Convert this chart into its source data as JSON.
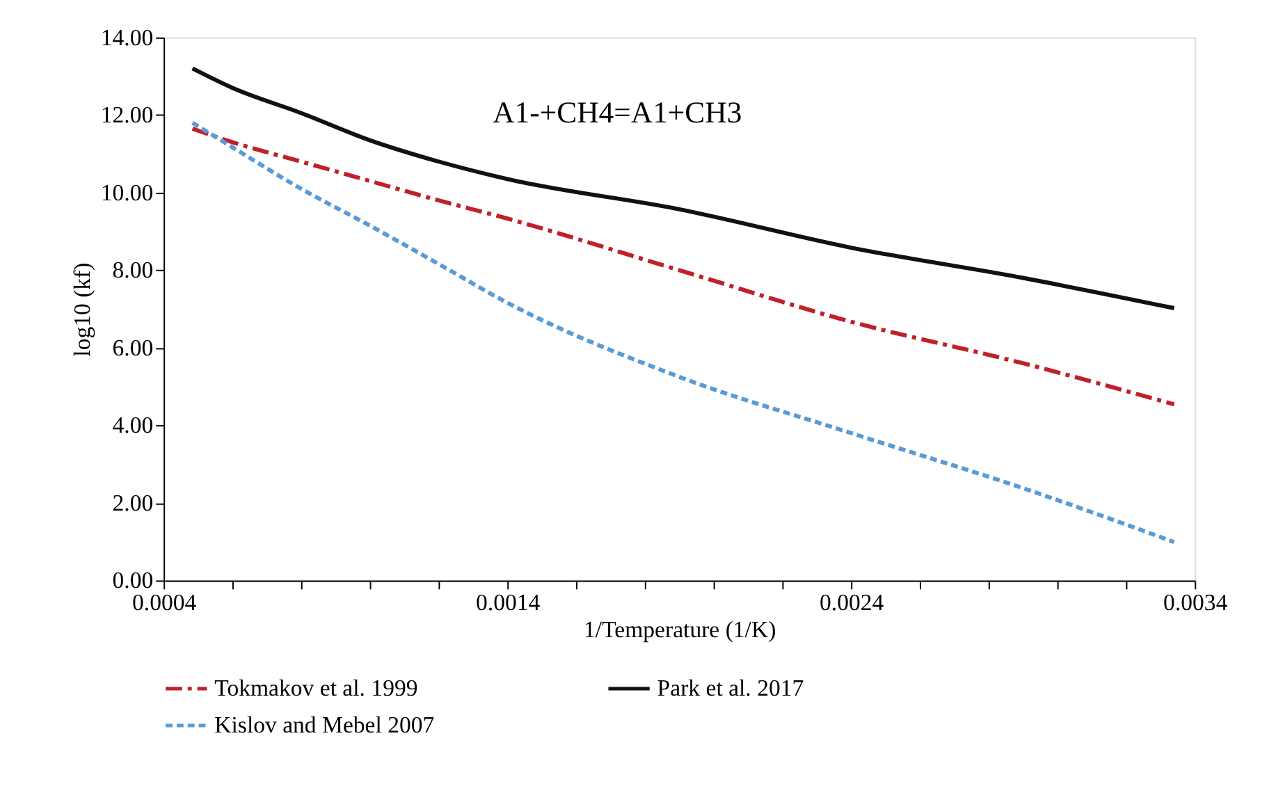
{
  "chart_data": {
    "type": "line",
    "title": "A1-+CH4=A1+CH3",
    "xlabel": "1/Temperature (1/K)",
    "ylabel": "log10 (kf)",
    "xlim": [
      0.0004,
      0.0034
    ],
    "xticks": [
      0.0004,
      {
        "value": 0.0006,
        "label": null
      },
      {
        "value": 0.0008,
        "label": null
      },
      {
        "value": 0.001,
        "label": null
      },
      {
        "value": 0.0012,
        "label": null
      },
      0.0014,
      {
        "value": 0.0016,
        "label": null
      },
      {
        "value": 0.0018,
        "label": null
      },
      {
        "value": 0.002,
        "label": null
      },
      {
        "value": 0.0022,
        "label": null
      },
      0.0024,
      {
        "value": 0.0026,
        "label": null
      },
      {
        "value": 0.0028,
        "label": null
      },
      {
        "value": 0.003,
        "label": null
      },
      {
        "value": 0.0032,
        "label": null
      },
      0.0034
    ],
    "ylim": [
      0,
      14
    ],
    "yticks": [
      {
        "value": 0,
        "label": "0.00"
      },
      {
        "value": 2,
        "label": "2.00"
      },
      {
        "value": 4,
        "label": "4.00"
      },
      {
        "value": 6,
        "label": "6.00"
      },
      {
        "value": 8,
        "label": "8.00"
      },
      {
        "value": 10,
        "label": "10.00"
      },
      {
        "value": 12,
        "label": "12.00"
      },
      {
        "value": 14,
        "label": "14.00"
      }
    ],
    "x": [
      0.000484,
      0.0006,
      0.0008,
      0.001,
      0.0012,
      0.0014,
      0.0019,
      0.0024,
      0.0029,
      0.00334
    ],
    "series": [
      {
        "name": "Tokmakov et al. 1999",
        "color": "#c0202a",
        "line_style": "dashdot",
        "values": [
          11.65,
          11.3,
          10.8,
          10.3,
          9.8,
          9.33,
          8.0,
          6.67,
          5.6,
          4.54
        ]
      },
      {
        "name": "Park et al. 2017",
        "color": "#111111",
        "line_style": "solid",
        "values": [
          13.2,
          12.7,
          12.05,
          11.35,
          10.8,
          10.35,
          9.57,
          8.58,
          7.8,
          7.02
        ]
      },
      {
        "name": "Kislov and Mebel 2007",
        "color": "#5b9bd5",
        "line_style": "dashed",
        "values": [
          11.8,
          11.17,
          10.1,
          9.15,
          8.16,
          7.16,
          5.25,
          3.8,
          2.38,
          0.99
        ]
      }
    ],
    "grid": false,
    "legend": "bottom"
  }
}
